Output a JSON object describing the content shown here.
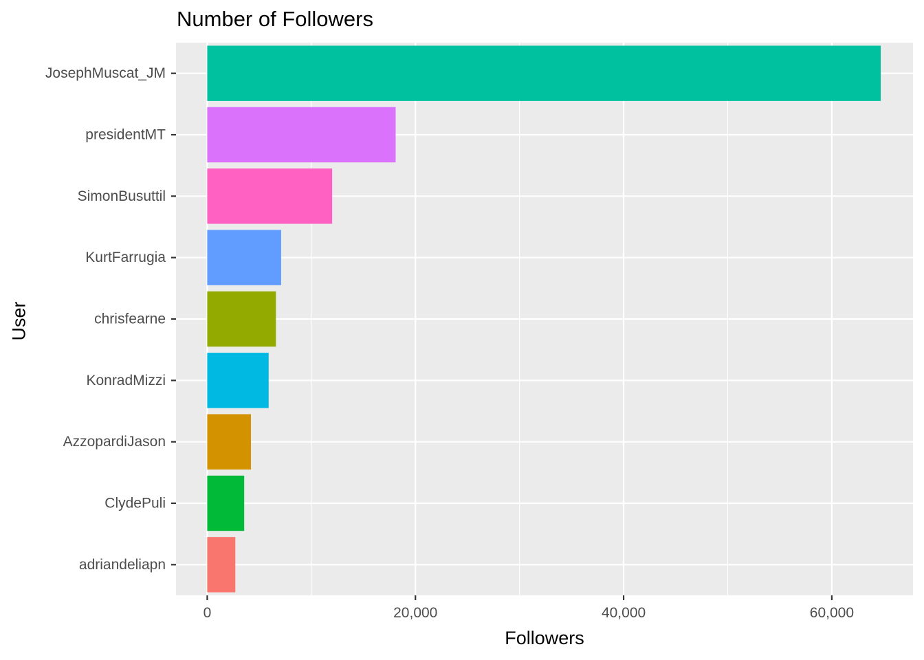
{
  "chart_data": {
    "type": "bar",
    "orientation": "horizontal",
    "title": "Number of Followers",
    "xlabel": "Followers",
    "ylabel": "User",
    "categories": [
      "adriandeliapn",
      "ClydePuli",
      "AzzopardiJason",
      "KonradMizzi",
      "chrisfearne",
      "KurtFarrugia",
      "SimonBusuttil",
      "presidentMT",
      "JosephMuscat_JM"
    ],
    "values": [
      2700,
      3550,
      4200,
      5900,
      6600,
      7100,
      12000,
      18100,
      64700
    ],
    "colors": [
      "#F8766D",
      "#00BA38",
      "#D39200",
      "#00B9E3",
      "#93AA00",
      "#619CFF",
      "#FF61C3",
      "#DB72FB",
      "#00C19F"
    ],
    "xlim": [
      -3000,
      67800
    ],
    "x_ticks": [
      0,
      20000,
      40000,
      60000
    ],
    "x_tick_labels": [
      "0",
      "20,000",
      "40,000",
      "60,000"
    ],
    "grid": true,
    "legend": "none",
    "panel_background": "#EBEBEB",
    "grid_color": "#FFFFFF"
  }
}
